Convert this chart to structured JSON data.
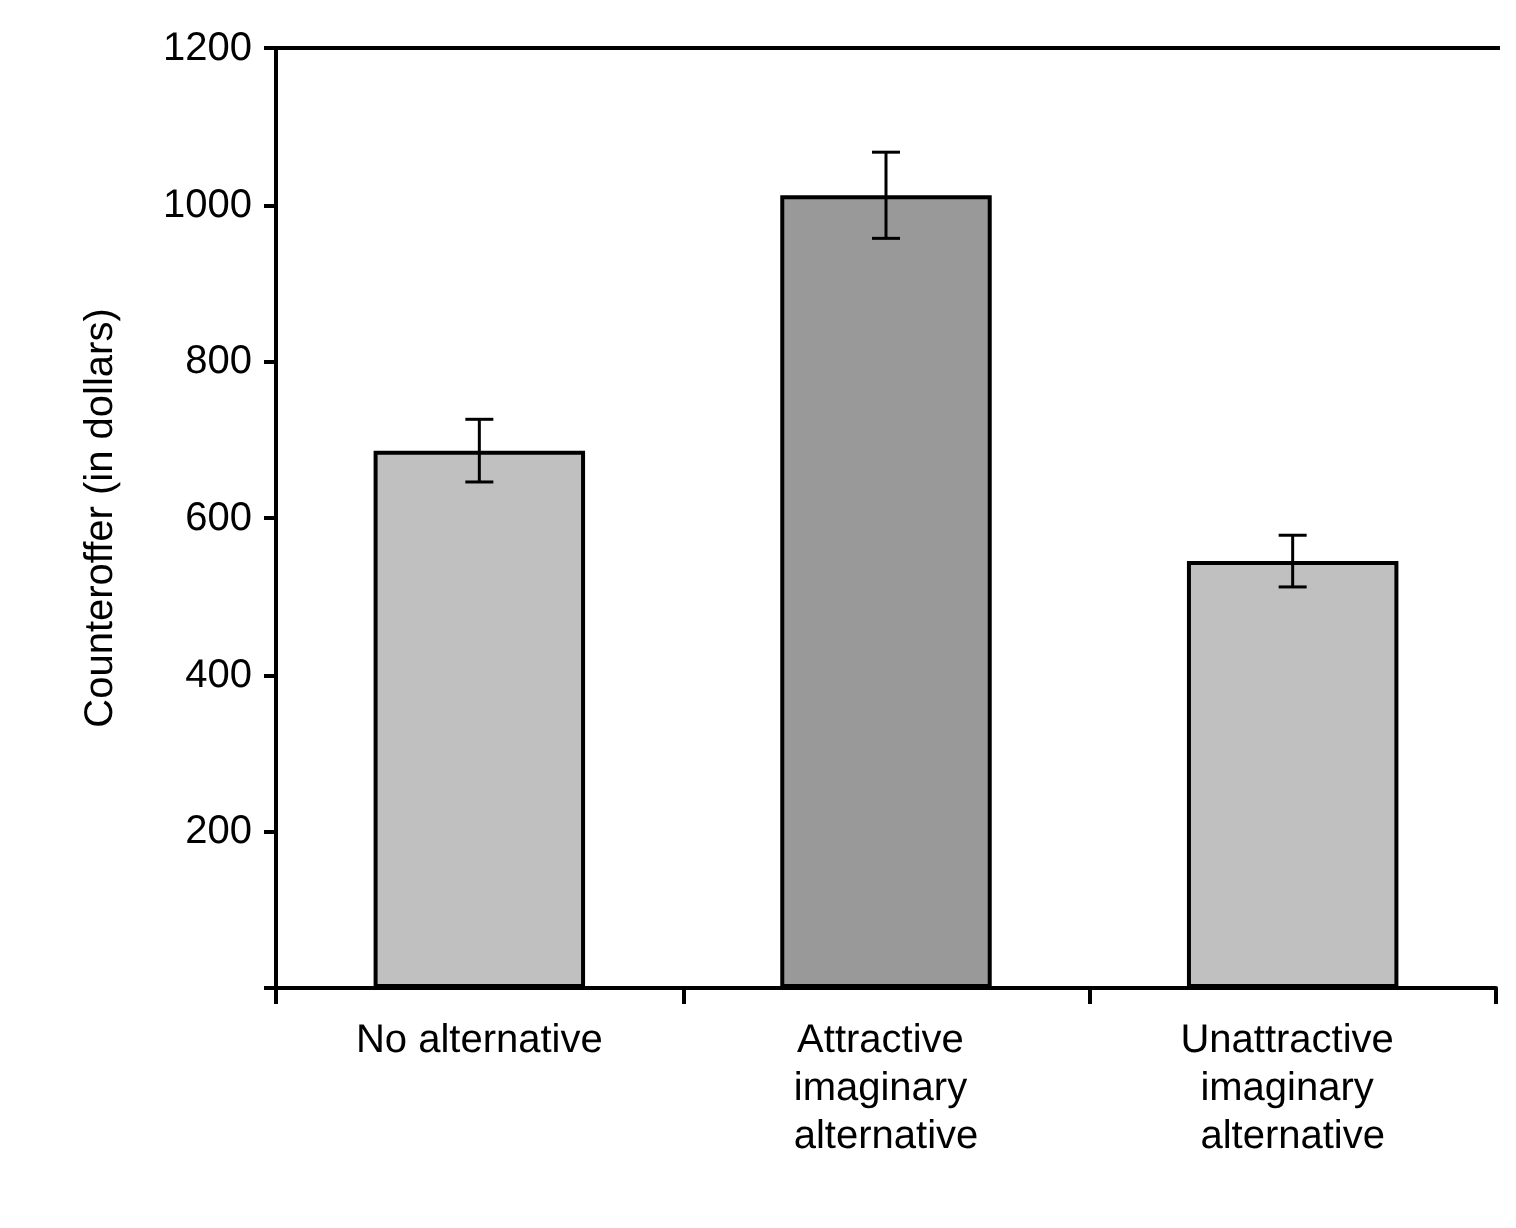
{
  "chart_data": {
    "type": "bar",
    "ylabel": "Counteroffer (in dollars)",
    "categories": [
      "No alternative",
      "Attractive imaginary alternative",
      "Unattractive imaginary alternative"
    ],
    "values": [
      686,
      1012,
      545
    ],
    "errors": [
      40,
      55,
      33
    ],
    "colors": [
      "#c0c0c0",
      "#999999",
      "#c0c0c0"
    ],
    "ylim": [
      0,
      1200
    ],
    "yticks": [
      {
        "value": 0,
        "label": null
      },
      200,
      400,
      600,
      800,
      1000,
      1200
    ]
  }
}
